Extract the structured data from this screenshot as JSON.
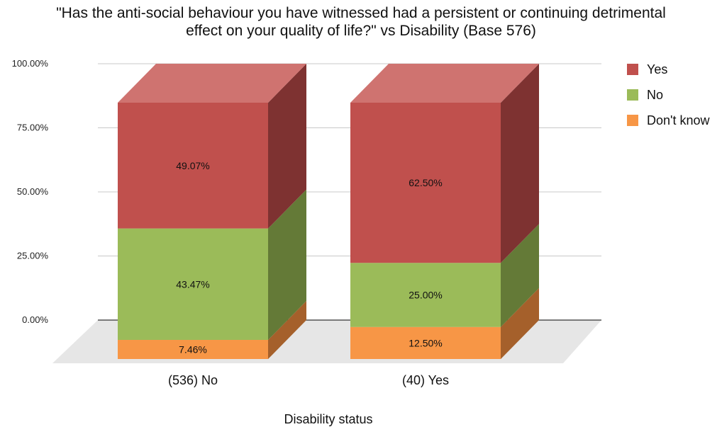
{
  "chart_data": {
    "type": "bar",
    "stacked": true,
    "style": "3d",
    "title_lines": [
      "\"Has the anti-social behaviour you have witnessed had a persistent or continuing detrimental",
      "effect on your quality of life?\" vs Disability (Base 576)"
    ],
    "xlabel": "Disability status",
    "ylabel": "",
    "ylim": [
      0,
      100
    ],
    "yticks": [
      "0.00%",
      "25.00%",
      "50.00%",
      "75.00%",
      "100.00%"
    ],
    "categories": [
      "(536) No",
      "(40) Yes"
    ],
    "series": [
      {
        "name": "Don't know",
        "values": [
          7.46,
          12.5
        ],
        "labels": [
          "7.46%",
          "12.50%"
        ],
        "color": "#f79646",
        "side_color": "#a5602b"
      },
      {
        "name": "No",
        "values": [
          43.47,
          25.0
        ],
        "labels": [
          "43.47%",
          "25.00%"
        ],
        "color": "#9bbb59",
        "side_color": "#647a37"
      },
      {
        "name": "Yes",
        "values": [
          49.07,
          62.5
        ],
        "labels": [
          "49.07%",
          "62.50%"
        ],
        "color": "#c0504d",
        "side_color": "#7e3231",
        "top_color": "#cf7370"
      }
    ],
    "legend": {
      "position": "right",
      "items": [
        {
          "name": "Yes",
          "color": "#c0504d"
        },
        {
          "name": "No",
          "color": "#9bbb59"
        },
        {
          "name": "Don't know",
          "color": "#f79646"
        }
      ]
    },
    "grid": true
  }
}
